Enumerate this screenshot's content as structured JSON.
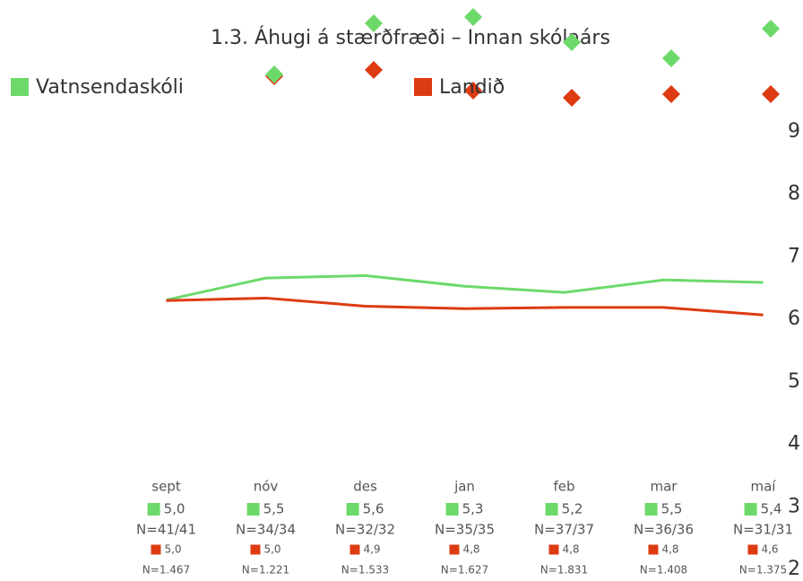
{
  "chart_data": {
    "type": "line",
    "title": "1.3. Áhugi á stærðfræði – Innan skólaárs",
    "categories": [
      "sept",
      "nóv",
      "des",
      "jan",
      "feb",
      "mar",
      "maí"
    ],
    "series": [
      {
        "name": "Vatnsendaskóli",
        "color": "#6dd96a",
        "values": [
          6.31,
          6.66,
          6.7,
          6.53,
          6.43,
          6.63,
          6.59
        ],
        "scores": [
          "5,0",
          "5,5",
          "5,6",
          "5,3",
          "5,2",
          "5,5",
          "5,4"
        ],
        "counts": [
          "N=41/41",
          "N=34/34",
          "N=32/32",
          "N=35/35",
          "N=37/37",
          "N=36/36",
          "N=31/31"
        ]
      },
      {
        "name": "Landið",
        "color": "#dd3b12",
        "values": [
          6.3,
          6.34,
          6.21,
          6.17,
          6.19,
          6.19,
          6.07
        ],
        "scores": [
          "5,0",
          "5,0",
          "4,9",
          "4,8",
          "4,8",
          "4,8",
          "4,6"
        ],
        "counts": [
          "N=1.467",
          "N=1.221",
          "N=1.533",
          "N=1.627",
          "N=1.831",
          "N=1.408",
          "N=1.375"
        ]
      }
    ],
    "ylim": [
      2,
      9
    ],
    "yticks": [
      2,
      3,
      4,
      5,
      6,
      7,
      8,
      9
    ]
  }
}
